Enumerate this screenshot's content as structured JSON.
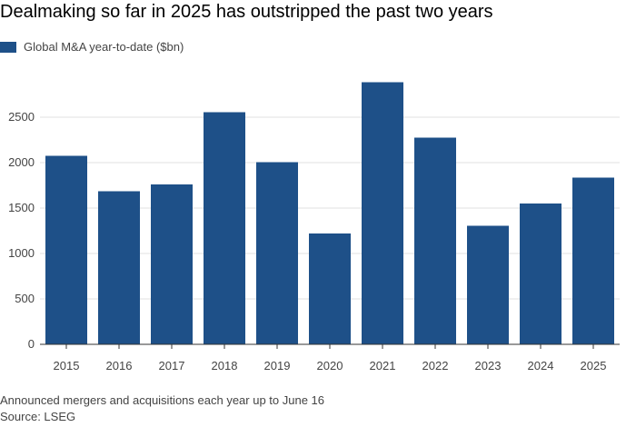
{
  "title": "Dealmaking so far in 2025 has outstripped the past two years",
  "note": "Announced mergers and acquisitions each year up to June 16",
  "source": "Source: LSEG",
  "colors": {
    "bar": "#1e5088",
    "grid": "#e0e0e0",
    "axis": "#333333"
  },
  "chart_data": {
    "type": "bar",
    "title": "Dealmaking so far in 2025 has outstripped the past two years",
    "xlabel": "",
    "ylabel": "",
    "legend": "top-left",
    "grid": true,
    "ylim": [
      0,
      3000
    ],
    "yticks": [
      0,
      500,
      1000,
      1500,
      2000,
      2500
    ],
    "categories": [
      "2015",
      "2016",
      "2017",
      "2018",
      "2019",
      "2020",
      "2021",
      "2022",
      "2023",
      "2024",
      "2025"
    ],
    "series": [
      {
        "name": "Global M&A year-to-date ($bn)",
        "values": [
          2075,
          1685,
          1760,
          2555,
          2005,
          1220,
          2885,
          2275,
          1305,
          1550,
          1835
        ]
      }
    ]
  }
}
